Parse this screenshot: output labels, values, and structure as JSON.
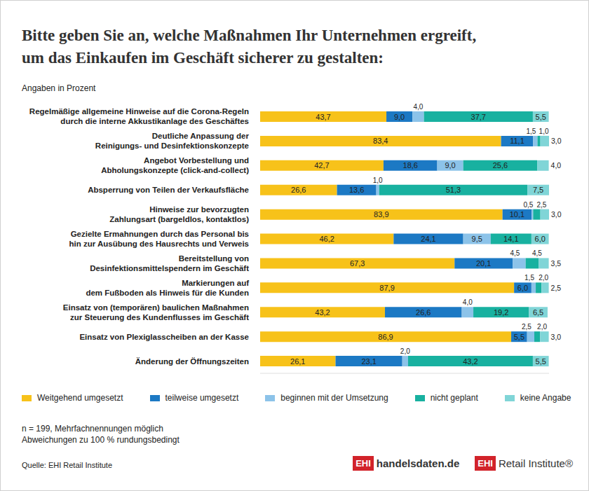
{
  "chart_data": {
    "type": "bar",
    "orientation": "horizontal",
    "stacked": true,
    "data_labels": true,
    "grid": false,
    "tick_labels": false,
    "legend": "bottom",
    "title": "Bitte geben Sie an, welche Maßnahmen Ihr Unternehmen  ergreift,\num das Einkaufen im Geschäft sicherer zu gestalten:",
    "subtitle": "Angaben in Prozent",
    "notes": [
      "n = 199, Mehrfachnennungen möglich",
      "Abweichungen zu 100 % rundungsbedingt"
    ],
    "source": "Quelle: EHI Retail Institute",
    "logos": [
      {
        "mark": "EHI",
        "text": "handelsdaten.de"
      },
      {
        "mark": "EHI",
        "text": "Retail Institute®"
      }
    ],
    "xlim": [
      0,
      100
    ],
    "categories": [
      "Regelmäßige allgemeine Hinweise auf die Corona-Regeln\ndurch die interne Akkustikanlage des Geschäftes",
      "Deutliche Anpassung der\nReinigungs- und Desinfektionskonzepte",
      "Angebot Vorbestellung und\nAbholungskonzepte (click-and-collect)",
      "Absperrung von Teilen der Verkaufsfläche",
      "Hinweise zur bevorzugten\nZahlungsart (bargeldlos, kontaktlos)",
      "Gezielte Ermahnungen durch das Personal bis\nhin zur Ausübung des Hausrechts und Verweis",
      "Bereitstellung von\nDesinfektionsmittelspendern im Geschäft",
      "Markierungen auf\ndem Fußboden als Hinweis für die Kunden",
      "Einsatz von (temporären) baulichen Maßnahmen\nzur Steuerung des Kundenflusses im Geschäft",
      "Einsatz von Plexiglasscheiben an der Kasse",
      "Änderung der Öffnungszeiten"
    ],
    "series": [
      {
        "name": "Weitgehend umgesetzt",
        "color": "#f7c21a",
        "values": [
          43.7,
          83.4,
          42.7,
          26.6,
          83.9,
          46.2,
          67.3,
          87.9,
          43.2,
          86.9,
          26.1
        ],
        "value_labels": [
          "43,7",
          "83,4",
          "42,7",
          "26,6",
          "83,9",
          "46,2",
          "67,3",
          "87,9",
          "43,2",
          "86,9",
          "26,1"
        ]
      },
      {
        "name": "teilweise umgesetzt",
        "color": "#1c79c4",
        "values": [
          9.0,
          11.1,
          18.6,
          13.6,
          10.1,
          24.1,
          20.1,
          6.0,
          26.6,
          5.5,
          23.1
        ],
        "value_labels": [
          "9,0",
          "11,1",
          "18,6",
          "13,6",
          "10,1",
          "24,1",
          "20,1",
          "6,0",
          "26,6",
          "5,5",
          "23,1"
        ]
      },
      {
        "name": "beginnen mit der Umsetzung",
        "color": "#8cc3e9",
        "values": [
          4.0,
          1.5,
          9.0,
          1.0,
          0.5,
          9.5,
          4.5,
          1.5,
          4.0,
          2.5,
          2.0
        ],
        "value_labels": [
          "4,0",
          "1,5",
          "9,0",
          "1,0",
          "0,5",
          "9,5",
          "4,5",
          "1,5",
          "4,0",
          "2,5",
          "2,0"
        ]
      },
      {
        "name": "nicht geplant",
        "color": "#18b1a0",
        "values": [
          37.7,
          1.0,
          25.6,
          51.3,
          2.5,
          14.1,
          4.5,
          2.0,
          19.2,
          2.0,
          43.2
        ],
        "value_labels": [
          "37,7",
          "1,0",
          "25,6",
          "51,3",
          "2,5",
          "14,1",
          "4,5",
          "2,0",
          "19,2",
          "2,0",
          "43,2"
        ]
      },
      {
        "name": "keine Angabe",
        "color": "#80d5d7",
        "values": [
          5.5,
          3.0,
          4.0,
          7.5,
          3.0,
          6.0,
          3.5,
          2.5,
          6.5,
          3.0,
          5.5
        ],
        "value_labels": [
          "5,5",
          "3,0",
          "4,0",
          "7,5",
          "3,0",
          "6,0",
          "3,5",
          "2,5",
          "6,5",
          "3,0",
          "5,5"
        ]
      }
    ]
  }
}
